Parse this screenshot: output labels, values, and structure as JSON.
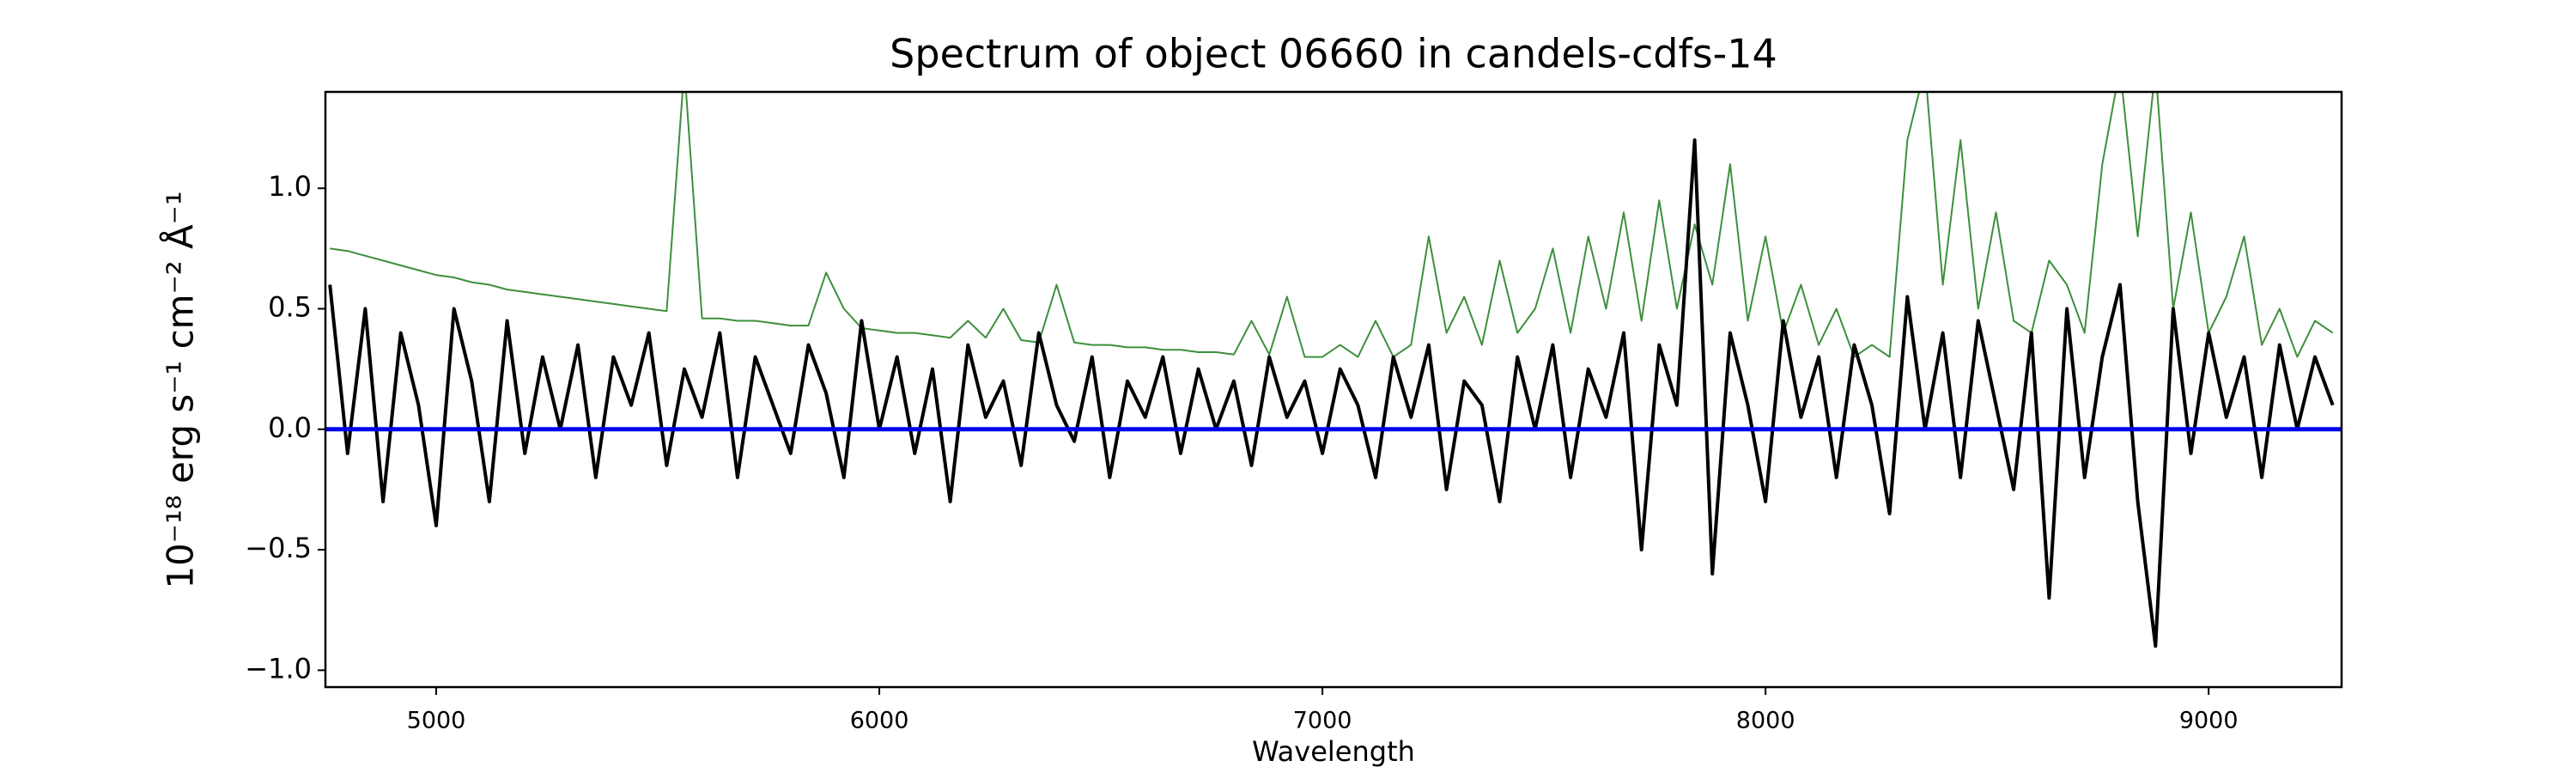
{
  "chart_data": {
    "type": "line",
    "title": "Spectrum of object 06660 in candels-cdfs-14",
    "x_label": "Wavelength",
    "y_label": "10⁻¹⁸ erg s⁻¹ cm⁻² Å⁻¹",
    "xlim": [
      4750,
      9300
    ],
    "ylim": [
      -1.07,
      1.4
    ],
    "xticks": [
      5000,
      6000,
      7000,
      8000,
      9000
    ],
    "yticks": [
      {
        "value": -1.0,
        "label": "−1.0"
      },
      {
        "value": -0.5,
        "label": "−0.5"
      },
      {
        "value": 0.0,
        "label": "0.0"
      },
      {
        "value": 0.5,
        "label": "0.5"
      },
      {
        "value": 1.0,
        "label": "1.0"
      }
    ],
    "x": [
      4760,
      4800,
      4840,
      4880,
      4920,
      4960,
      5000,
      5040,
      5080,
      5120,
      5160,
      5200,
      5240,
      5280,
      5320,
      5360,
      5400,
      5440,
      5480,
      5520,
      5560,
      5600,
      5640,
      5680,
      5720,
      5760,
      5800,
      5840,
      5880,
      5920,
      5960,
      6000,
      6040,
      6080,
      6120,
      6160,
      6200,
      6240,
      6280,
      6320,
      6360,
      6400,
      6440,
      6480,
      6520,
      6560,
      6600,
      6640,
      6680,
      6720,
      6760,
      6800,
      6840,
      6880,
      6920,
      6960,
      7000,
      7040,
      7080,
      7120,
      7160,
      7200,
      7240,
      7280,
      7320,
      7360,
      7400,
      7440,
      7480,
      7520,
      7560,
      7600,
      7640,
      7680,
      7720,
      7760,
      7800,
      7840,
      7880,
      7920,
      7960,
      8000,
      8040,
      8080,
      8120,
      8160,
      8200,
      8240,
      8280,
      8320,
      8360,
      8400,
      8440,
      8480,
      8520,
      8560,
      8600,
      8640,
      8680,
      8720,
      8760,
      8800,
      8840,
      8880,
      8920,
      8960,
      9000,
      9040,
      9080,
      9120,
      9160,
      9200,
      9240,
      9280
    ],
    "series": [
      {
        "color": "#3d8f3d",
        "width": 2,
        "values": [
          0.75,
          0.74,
          0.72,
          0.7,
          0.68,
          0.66,
          0.64,
          0.63,
          0.61,
          0.6,
          0.58,
          0.57,
          0.56,
          0.55,
          0.54,
          0.53,
          0.52,
          0.51,
          0.5,
          0.49,
          1.5,
          0.46,
          0.46,
          0.45,
          0.45,
          0.44,
          0.43,
          0.43,
          0.65,
          0.5,
          0.42,
          0.41,
          0.4,
          0.4,
          0.39,
          0.38,
          0.45,
          0.38,
          0.5,
          0.37,
          0.36,
          0.6,
          0.36,
          0.35,
          0.35,
          0.34,
          0.34,
          0.33,
          0.33,
          0.32,
          0.32,
          0.31,
          0.45,
          0.31,
          0.55,
          0.3,
          0.3,
          0.35,
          0.3,
          0.45,
          0.3,
          0.35,
          0.8,
          0.4,
          0.55,
          0.35,
          0.7,
          0.4,
          0.5,
          0.75,
          0.4,
          0.8,
          0.5,
          0.9,
          0.45,
          0.95,
          0.5,
          0.85,
          0.6,
          1.1,
          0.45,
          0.8,
          0.4,
          0.6,
          0.35,
          0.5,
          0.3,
          0.35,
          0.3,
          1.2,
          1.5,
          0.6,
          1.2,
          0.5,
          0.9,
          0.45,
          0.4,
          0.7,
          0.6,
          0.4,
          1.1,
          1.5,
          0.8,
          1.5,
          0.5,
          0.9,
          0.4,
          0.55,
          0.8,
          0.35,
          0.5,
          0.3,
          0.45,
          0.4
        ]
      },
      {
        "color": "#000000",
        "width": 4,
        "values": [
          0.6,
          -0.1,
          0.5,
          -0.3,
          0.4,
          0.1,
          -0.4,
          0.5,
          0.2,
          -0.3,
          0.45,
          -0.1,
          0.3,
          0.0,
          0.35,
          -0.2,
          0.3,
          0.1,
          0.4,
          -0.15,
          0.25,
          0.05,
          0.4,
          -0.2,
          0.3,
          0.1,
          -0.1,
          0.35,
          0.15,
          -0.2,
          0.45,
          0.0,
          0.3,
          -0.1,
          0.25,
          -0.3,
          0.35,
          0.05,
          0.2,
          -0.15,
          0.4,
          0.1,
          -0.05,
          0.3,
          -0.2,
          0.2,
          0.05,
          0.3,
          -0.1,
          0.25,
          0.0,
          0.2,
          -0.15,
          0.3,
          0.05,
          0.2,
          -0.1,
          0.25,
          0.1,
          -0.2,
          0.3,
          0.05,
          0.35,
          -0.25,
          0.2,
          0.1,
          -0.3,
          0.3,
          0.0,
          0.35,
          -0.2,
          0.25,
          0.05,
          0.4,
          -0.5,
          0.35,
          0.1,
          1.2,
          -0.6,
          0.4,
          0.1,
          -0.3,
          0.45,
          0.05,
          0.3,
          -0.2,
          0.35,
          0.1,
          -0.35,
          0.55,
          0.0,
          0.4,
          -0.2,
          0.45,
          0.1,
          -0.25,
          0.4,
          -0.7,
          0.5,
          -0.2,
          0.3,
          0.6,
          -0.3,
          -0.9,
          0.5,
          -0.1,
          0.4,
          0.05,
          0.3,
          -0.2,
          0.35,
          0.0,
          0.3,
          0.1
        ]
      },
      {
        "color": "#0000ee",
        "width": 5,
        "x": [
          4750,
          9300
        ],
        "values": [
          0,
          0
        ]
      }
    ]
  }
}
